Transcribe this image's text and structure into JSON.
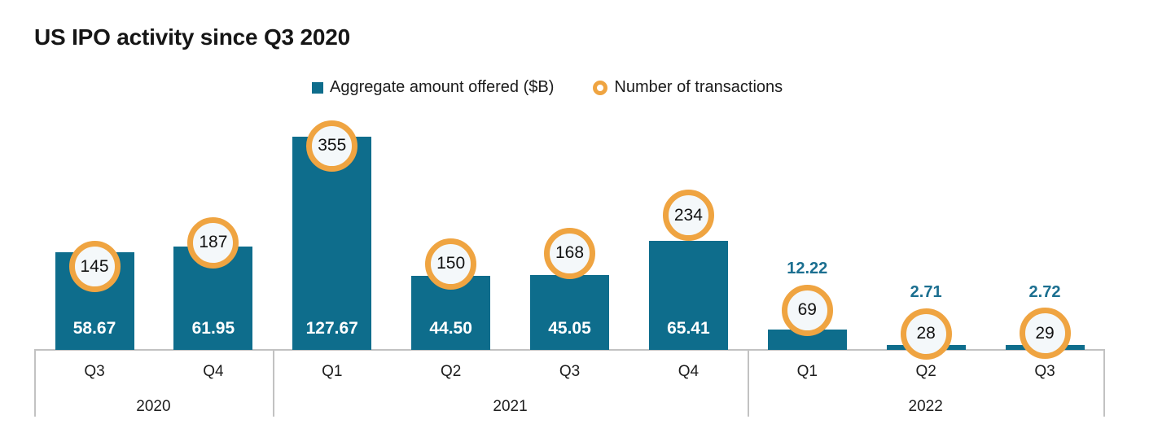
{
  "title": "US IPO activity since Q3 2020",
  "legend": [
    {
      "label": "Aggregate amount offered ($B)",
      "marker": "square-icon"
    },
    {
      "label": "Number of transactions",
      "marker": "ring-icon"
    }
  ],
  "colors": {
    "bar": "#0e6d8c",
    "ring": "#efa441",
    "circle_fill": "#f4f8fa",
    "circle_text": "#121212",
    "outside_label": "#1b6f90",
    "axis": "#c2c2c2"
  },
  "chart_data": {
    "type": "bar",
    "title": "US IPO activity since Q3 2020",
    "categories": [
      "Q3 2020",
      "Q4 2020",
      "Q1 2021",
      "Q2 2021",
      "Q3 2021",
      "Q4 2021",
      "Q1 2022",
      "Q2 2022",
      "Q3 2022"
    ],
    "series": [
      {
        "name": "Aggregate amount offered ($B)",
        "type": "bar",
        "values": [
          58.67,
          61.95,
          127.67,
          44.5,
          45.05,
          65.41,
          12.22,
          2.71,
          2.72
        ],
        "display_values": [
          "58.67",
          "61.95",
          "127.67",
          "44.50",
          "45.05",
          "65.41",
          "12.22",
          "2.71",
          "2.72"
        ],
        "label_positions": [
          "inside",
          "inside",
          "inside",
          "inside",
          "inside",
          "inside",
          "above",
          "above",
          "above"
        ]
      },
      {
        "name": "Number of transactions",
        "type": "scatter",
        "marker": "ring-circle",
        "values": [
          145,
          187,
          355,
          150,
          168,
          234,
          69,
          28,
          29
        ]
      }
    ],
    "groups": [
      {
        "year": "2020",
        "quarters": [
          "Q3",
          "Q4"
        ]
      },
      {
        "year": "2021",
        "quarters": [
          "Q1",
          "Q2",
          "Q3",
          "Q4"
        ]
      },
      {
        "year": "2022",
        "quarters": [
          "Q1",
          "Q2",
          "Q3"
        ]
      }
    ],
    "xlabel": "",
    "ylabel": "",
    "grid": false,
    "legend_position": "top-center"
  }
}
